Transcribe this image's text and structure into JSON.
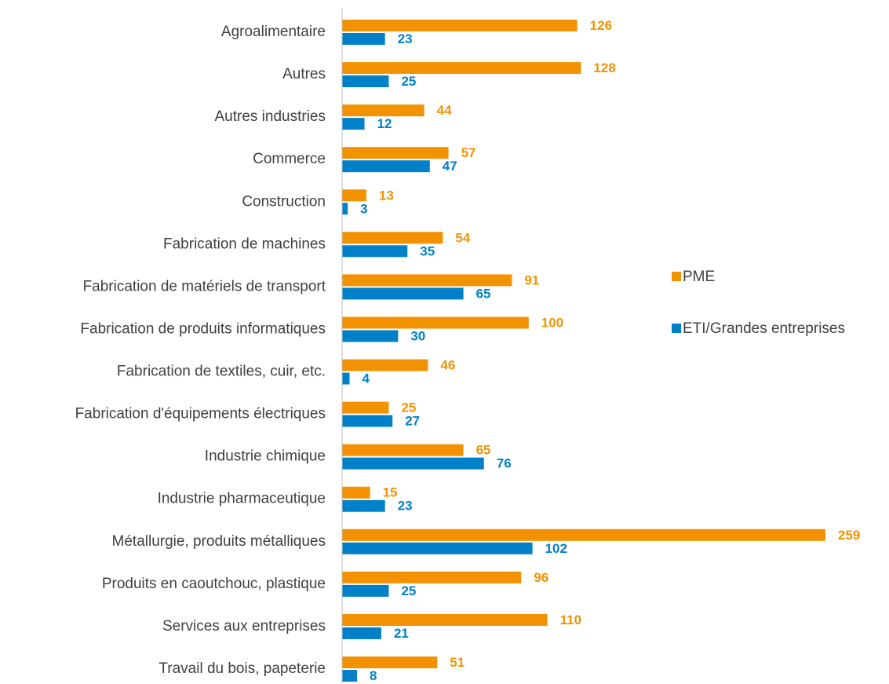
{
  "chart_data": {
    "type": "bar",
    "orientation": "horizontal",
    "categories": [
      "Agroalimentaire",
      "Autres",
      "Autres industries",
      "Commerce",
      "Construction",
      "Fabrication de machines",
      "Fabrication de matériels de transport",
      "Fabrication de produits informatiques",
      "Fabrication de textiles, cuir, etc.",
      "Fabrication d'équipements électriques",
      "Industrie chimique",
      "Industrie pharmaceutique",
      "Métallurgie, produits métalliques",
      "Produits en caoutchouc, plastique",
      "Services aux entreprises",
      "Travail du bois, papeterie"
    ],
    "series": [
      {
        "name": "PME",
        "color": "#F39200",
        "values": [
          126,
          128,
          44,
          57,
          13,
          54,
          91,
          100,
          46,
          25,
          65,
          15,
          259,
          96,
          110,
          51
        ]
      },
      {
        "name": "ETI/Grandes entreprises",
        "color": "#0080C8",
        "values": [
          23,
          25,
          12,
          47,
          3,
          35,
          65,
          30,
          4,
          27,
          76,
          23,
          102,
          25,
          21,
          8
        ]
      }
    ],
    "legend": "right"
  }
}
